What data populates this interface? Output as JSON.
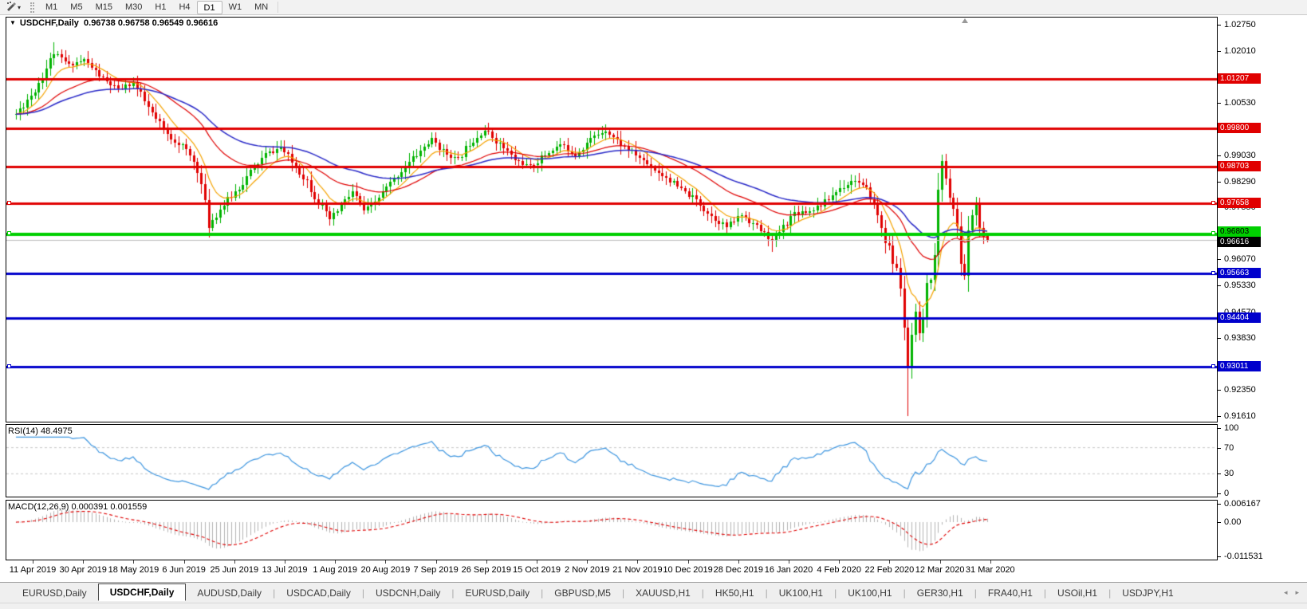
{
  "toolbar": {
    "timeframes": [
      "M1",
      "M5",
      "M15",
      "M30",
      "H1",
      "H4",
      "D1",
      "W1",
      "MN"
    ],
    "active_timeframe": "D1"
  },
  "chart": {
    "title_symbol": "USDCHF,Daily",
    "title_ohlc": "0.96738 0.96758 0.96549 0.96616",
    "dropdown_icon": "▼"
  },
  "chart_data": {
    "type": "candlestick",
    "symbol": "USDCHF",
    "period": "Daily",
    "last_ohlc": {
      "open": 0.96738,
      "high": 0.96758,
      "low": 0.96549,
      "close": 0.96616
    },
    "price_axis": {
      "max": 1.0275,
      "min": 0.9161,
      "ticks": [
        "1.02750",
        "1.02010",
        "1.00530",
        "0.99030",
        "0.98290",
        "0.97550",
        "0.96070",
        "0.95330",
        "0.94570",
        "0.93830",
        "0.92350",
        "0.91610"
      ]
    },
    "date_labels": [
      "11 Apr 2019",
      "30 Apr 2019",
      "18 May 2019",
      "6 Jun 2019",
      "25 Jun 2019",
      "13 Jul 2019",
      "1 Aug 2019",
      "20 Aug 2019",
      "7 Sep 2019",
      "26 Sep 2019",
      "15 Oct 2019",
      "2 Nov 2019",
      "21 Nov 2019",
      "10 Dec 2019",
      "28 Dec 2019",
      "16 Jan 2020",
      "4 Feb 2020",
      "22 Feb 2020",
      "12 Mar 2020",
      "31 Mar 2020"
    ],
    "num_candles": 258,
    "seed": 11,
    "anchors": [
      [
        0,
        1.002
      ],
      [
        5,
        1.009
      ],
      [
        10,
        1.0195
      ],
      [
        14,
        1.016
      ],
      [
        18,
        1.0175
      ],
      [
        23,
        1.012
      ],
      [
        27,
        1.009
      ],
      [
        31,
        1.011
      ],
      [
        36,
        1.002
      ],
      [
        40,
        0.996
      ],
      [
        44,
        0.993
      ],
      [
        48,
        0.987
      ],
      [
        51,
        0.9705
      ],
      [
        54,
        0.975
      ],
      [
        58,
        0.98
      ],
      [
        62,
        0.9855
      ],
      [
        66,
        0.9905
      ],
      [
        70,
        0.9925
      ],
      [
        74,
        0.987
      ],
      [
        77,
        0.983
      ],
      [
        80,
        0.977
      ],
      [
        83,
        0.972
      ],
      [
        86,
        0.976
      ],
      [
        89,
        0.98
      ],
      [
        92,
        0.9745
      ],
      [
        95,
        0.977
      ],
      [
        98,
        0.981
      ],
      [
        102,
        0.986
      ],
      [
        106,
        0.9905
      ],
      [
        110,
        0.995
      ],
      [
        113,
        0.9915
      ],
      [
        117,
        0.989
      ],
      [
        120,
        0.994
      ],
      [
        124,
        0.9975
      ],
      [
        128,
        0.9935
      ],
      [
        132,
        0.989
      ],
      [
        136,
        0.987
      ],
      [
        140,
        0.9905
      ],
      [
        144,
        0.9935
      ],
      [
        148,
        0.9905
      ],
      [
        152,
        0.995
      ],
      [
        156,
        0.9975
      ],
      [
        160,
        0.9935
      ],
      [
        164,
        0.9905
      ],
      [
        168,
        0.987
      ],
      [
        172,
        0.984
      ],
      [
        176,
        0.9805
      ],
      [
        180,
        0.9775
      ],
      [
        184,
        0.973
      ],
      [
        188,
        0.97
      ],
      [
        192,
        0.9735
      ],
      [
        196,
        0.97
      ],
      [
        200,
        0.966
      ],
      [
        203,
        0.97
      ],
      [
        206,
        0.974
      ],
      [
        210,
        0.9745
      ],
      [
        214,
        0.977
      ],
      [
        218,
        0.981
      ],
      [
        222,
        0.9835
      ],
      [
        226,
        0.979
      ],
      [
        229,
        0.97
      ],
      [
        232,
        0.96
      ],
      [
        234,
        0.954
      ],
      [
        236,
        0.929
      ],
      [
        237,
        0.939
      ],
      [
        238,
        0.944
      ],
      [
        239,
        0.938
      ],
      [
        240,
        0.945
      ],
      [
        241,
        0.951
      ],
      [
        242,
        0.958
      ],
      [
        243,
        0.965
      ],
      [
        244,
        0.979
      ],
      [
        245,
        0.988
      ],
      [
        246,
        0.984
      ],
      [
        247,
        0.979
      ],
      [
        248,
        0.975
      ],
      [
        249,
        0.968
      ],
      [
        250,
        0.96
      ],
      [
        251,
        0.956
      ],
      [
        252,
        0.968
      ],
      [
        253,
        0.974
      ],
      [
        254,
        0.976
      ],
      [
        255,
        0.97
      ],
      [
        256,
        0.966
      ],
      [
        257,
        0.96616
      ]
    ],
    "wick_overrides": [
      {
        "day": 10,
        "high": 1.0225
      },
      {
        "day": 200,
        "low": 0.9628
      },
      {
        "day": 236,
        "low": 0.9161
      },
      {
        "day": 245,
        "high": 0.9905
      },
      {
        "day": 251,
        "low": 0.9548
      }
    ],
    "hlines": [
      {
        "price": 1.01207,
        "label": "1.01207",
        "color": "red"
      },
      {
        "price": 0.998,
        "label": "0.99800",
        "color": "red"
      },
      {
        "price": 0.98703,
        "label": "0.98703",
        "color": "red"
      },
      {
        "price": 0.97658,
        "label": "0.97658",
        "color": "red",
        "left_handle": true,
        "right_handle": true
      },
      {
        "price": 0.96803,
        "label": "0.96803",
        "color": "green",
        "left_handle": true,
        "right_handle": true
      },
      {
        "price": 0.95663,
        "label": "0.95663",
        "color": "blue",
        "right_handle": true
      },
      {
        "price": 0.94404,
        "label": "0.94404",
        "color": "blue"
      },
      {
        "price": 0.93011,
        "label": "0.93011",
        "color": "blue",
        "left_handle": true,
        "right_handle": true
      }
    ],
    "current_price": {
      "value": 0.96616,
      "label": "0.96616"
    },
    "moving_averages": [
      {
        "period": 9,
        "color": "#f5a300",
        "name": "fast-ma"
      },
      {
        "period": 30,
        "color": "#e00000",
        "name": "medium-ma"
      },
      {
        "period": 55,
        "color": "#2929c8",
        "name": "slow-ma"
      }
    ],
    "rsi": {
      "label": "RSI(14) 48.4975",
      "period": 14,
      "current": 48.4975,
      "levels": [
        70,
        30
      ],
      "axis_labels": [
        {
          "v": 100,
          "t": "100"
        },
        {
          "v": 70,
          "t": "70"
        },
        {
          "v": 30,
          "t": "30"
        },
        {
          "v": 0,
          "t": "0"
        }
      ]
    },
    "macd": {
      "label": "MACD(12,26,9) 0.000391 0.001559",
      "fast": 12,
      "slow": 26,
      "signal": 9,
      "main_current": 0.000391,
      "signal_current": 0.001559,
      "scale_max": 0.006167,
      "scale_min": -0.011531,
      "axis_labels": {
        "max": "0.006167",
        "zero": "0.00",
        "min": "-0.011531"
      }
    },
    "colors": {
      "up": "#00b300",
      "down": "#e00000",
      "hline_red": "#e00000",
      "hline_green": "#00cf00",
      "hline_blue": "#0000cc",
      "current_line": "#bbbbbb",
      "rsi_line": "#3e96e0",
      "rsi_level": "#c8c8c8",
      "macd_bar": "#b4b4b4",
      "macd_signal": "#e00000"
    }
  },
  "tabs": {
    "items": [
      "EURUSD,Daily",
      "USDCHF,Daily",
      "AUDUSD,Daily",
      "USDCAD,Daily",
      "USDCNH,Daily",
      "EURUSD,Daily",
      "GBPUSD,M5",
      "XAUUSD,H1",
      "HK50,H1",
      "UK100,H1",
      "UK100,H1",
      "GER30,H1",
      "FRA40,H1",
      "USOil,H1",
      "USDJPY,H1"
    ],
    "active_index": 1,
    "nav_left": "◂",
    "nav_right": "▸"
  }
}
